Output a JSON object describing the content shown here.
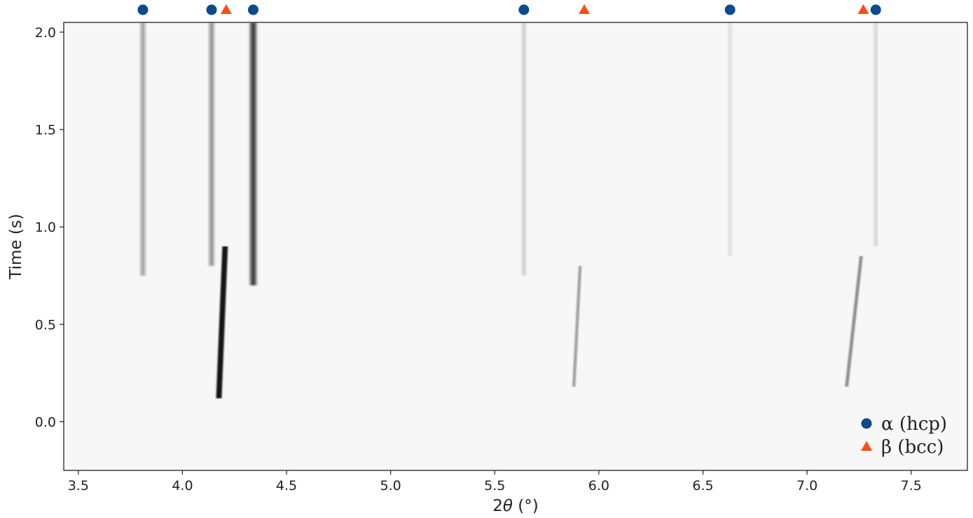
{
  "chart_data": {
    "type": "heatmap",
    "title": "",
    "xlabel_prefix": "2",
    "xlabel_symbol": "θ",
    "xlabel_suffix": " (°)",
    "ylabel": "Time (s)",
    "xlim": [
      3.43,
      7.77
    ],
    "ylim": [
      -0.25,
      2.05
    ],
    "xticks": [
      3.5,
      4.0,
      4.5,
      5.0,
      5.5,
      6.0,
      6.5,
      7.0,
      7.5
    ],
    "xtick_labels": [
      "3.5",
      "4.0",
      "4.5",
      "5.0",
      "5.5",
      "6.0",
      "6.5",
      "7.0",
      "7.5"
    ],
    "yticks": [
      0.0,
      0.5,
      1.0,
      1.5,
      2.0
    ],
    "ytick_labels": [
      "0.0",
      "0.5",
      "1.0",
      "1.5",
      "2.0"
    ],
    "grid": false,
    "colormap": "greys",
    "markers": {
      "alpha": {
        "positions": [
          3.81,
          4.14,
          4.34,
          5.64,
          6.63,
          7.33
        ],
        "color": "#0b4a8b",
        "shape": "circle"
      },
      "beta": {
        "positions": [
          4.21,
          5.93,
          7.27
        ],
        "color": "#ff4d1a",
        "shape": "triangle"
      }
    },
    "legend": {
      "placement": "bottom-right",
      "entries": [
        {
          "key": "alpha",
          "label": "α (hcp)"
        },
        {
          "key": "beta",
          "label": "β (bcc)"
        }
      ]
    },
    "streaks": [
      {
        "phase": "alpha",
        "x": 3.81,
        "t_start": 0.75,
        "t_end": 2.05,
        "intensity": 0.4
      },
      {
        "phase": "alpha",
        "x": 4.14,
        "t_start": 0.8,
        "t_end": 2.05,
        "intensity": 0.45
      },
      {
        "phase": "alpha",
        "x": 4.34,
        "t_start": 0.7,
        "t_end": 2.05,
        "intensity": 0.78
      },
      {
        "phase": "alpha",
        "x": 5.64,
        "t_start": 0.75,
        "t_end": 2.05,
        "intensity": 0.22
      },
      {
        "phase": "alpha",
        "x": 6.63,
        "t_start": 0.85,
        "t_end": 2.05,
        "intensity": 0.14
      },
      {
        "phase": "alpha",
        "x": 7.33,
        "t_start": 0.9,
        "t_end": 2.05,
        "intensity": 0.18
      },
      {
        "phase": "beta",
        "x": 4.175,
        "t_start": 0.12,
        "t_end": 0.9,
        "intensity": 0.97,
        "x_end": 4.205
      },
      {
        "phase": "beta",
        "x": 5.88,
        "t_start": 0.18,
        "t_end": 0.8,
        "intensity": 0.38,
        "x_end": 5.91
      },
      {
        "phase": "beta",
        "x": 7.19,
        "t_start": 0.18,
        "t_end": 0.85,
        "intensity": 0.45,
        "x_end": 7.26
      }
    ]
  }
}
